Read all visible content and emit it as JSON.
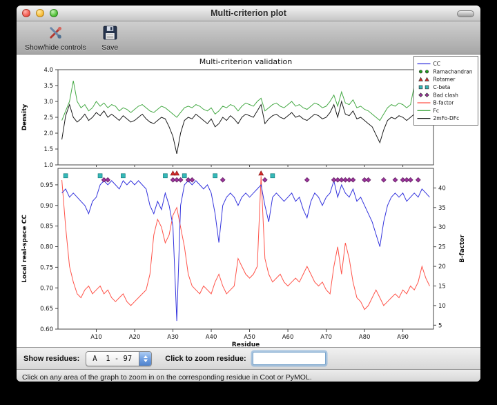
{
  "window": {
    "title": "Multi-criterion plot",
    "toolbar": {
      "items": [
        {
          "label": "Show/hide controls",
          "icon": "tools-icon"
        },
        {
          "label": "Save",
          "icon": "save-icon"
        }
      ]
    },
    "controls": {
      "show_residues_label": "Show residues:",
      "chain_range_value": "A  1 - 97",
      "zoom_label": "Click to zoom residue:",
      "zoom_value": ""
    },
    "status_text": "Click on any area of the graph to zoom in on the corresponding residue in Coot or PyMOL."
  },
  "chart_data": {
    "type": "line",
    "title": "Multi-criterion validation",
    "x": {
      "label": "Residue",
      "range": [
        0,
        98
      ],
      "tick_positions": [
        10,
        20,
        30,
        40,
        50,
        60,
        70,
        80,
        90
      ],
      "tick_labels": [
        "A10",
        "A20",
        "A30",
        "A40",
        "A50",
        "A60",
        "A70",
        "A80",
        "A90"
      ]
    },
    "top_plot": {
      "ylabel": "Density",
      "ylim": [
        1.0,
        4.0
      ],
      "yticks": [
        1.0,
        1.5,
        2.0,
        2.5,
        3.0,
        3.5,
        4.0
      ],
      "series": [
        {
          "name": "Fc",
          "color": "#44a944",
          "values": [
            2.4,
            2.7,
            3.0,
            3.65,
            3.0,
            2.8,
            2.9,
            2.7,
            2.8,
            3.0,
            2.85,
            2.95,
            2.8,
            2.9,
            2.85,
            2.7,
            2.8,
            2.75,
            2.65,
            2.75,
            2.85,
            2.9,
            2.8,
            2.7,
            2.65,
            2.75,
            2.85,
            2.8,
            2.7,
            2.6,
            2.5,
            2.65,
            2.8,
            2.85,
            2.8,
            2.9,
            2.85,
            2.75,
            2.7,
            2.8,
            2.6,
            2.7,
            2.85,
            2.8,
            2.9,
            2.85,
            2.7,
            2.85,
            2.95,
            2.9,
            2.85,
            3.0,
            3.1,
            2.7,
            2.8,
            2.9,
            2.95,
            2.85,
            2.8,
            2.9,
            3.0,
            2.85,
            2.9,
            2.8,
            2.75,
            2.85,
            2.95,
            2.9,
            2.8,
            2.85,
            3.0,
            3.2,
            2.85,
            3.3,
            2.95,
            2.9,
            3.05,
            2.8,
            2.85,
            2.75,
            2.7,
            2.6,
            2.5,
            2.4,
            2.6,
            2.8,
            2.9,
            2.85,
            2.95,
            2.9,
            2.8,
            2.9,
            3.5,
            2.9,
            3.45,
            3.0,
            2.9
          ]
        },
        {
          "name": "2mFo-DFc",
          "color": "#1a1a1a",
          "values": [
            1.8,
            2.55,
            2.9,
            2.5,
            2.35,
            2.45,
            2.6,
            2.4,
            2.5,
            2.65,
            2.55,
            2.7,
            2.5,
            2.6,
            2.5,
            2.4,
            2.55,
            2.45,
            2.35,
            2.4,
            2.5,
            2.6,
            2.45,
            2.35,
            2.3,
            2.4,
            2.5,
            2.45,
            2.2,
            1.9,
            1.35,
            2.0,
            2.4,
            2.5,
            2.45,
            2.6,
            2.5,
            2.4,
            2.3,
            2.45,
            2.2,
            2.3,
            2.5,
            2.4,
            2.55,
            2.45,
            2.3,
            2.5,
            2.6,
            2.55,
            2.5,
            2.7,
            2.9,
            2.3,
            2.45,
            2.55,
            2.6,
            2.5,
            2.45,
            2.55,
            2.65,
            2.5,
            2.55,
            2.45,
            2.4,
            2.5,
            2.6,
            2.55,
            2.45,
            2.5,
            2.65,
            2.9,
            2.5,
            3.0,
            2.6,
            2.55,
            2.7,
            2.45,
            2.5,
            2.4,
            2.3,
            2.2,
            1.95,
            1.7,
            2.1,
            2.4,
            2.5,
            2.45,
            2.55,
            2.5,
            2.4,
            2.5,
            2.6,
            2.5,
            3.3,
            2.6,
            2.5
          ]
        }
      ]
    },
    "bottom_plot": {
      "left": {
        "label": "Local real-space CC",
        "lim": [
          0.6,
          0.99
        ],
        "ticks": [
          0.6,
          0.65,
          0.7,
          0.75,
          0.8,
          0.85,
          0.9,
          0.95
        ]
      },
      "right": {
        "label": "B-factor",
        "lim": [
          4,
          45
        ],
        "ticks": [
          5,
          10,
          15,
          20,
          25,
          30,
          35,
          40
        ]
      },
      "series": [
        {
          "name": "B-factor",
          "axis": "right",
          "color": "#ff5349",
          "values": [
            42,
            30,
            20,
            16,
            13,
            12,
            14,
            15,
            13,
            14,
            15,
            13,
            14,
            12,
            11,
            12,
            13,
            11,
            10,
            11,
            12,
            13,
            14,
            18,
            28,
            32,
            30,
            26,
            28,
            33,
            35,
            30,
            25,
            18,
            15,
            14,
            13,
            15,
            14,
            13,
            16,
            18,
            15,
            13,
            14,
            15,
            22,
            20,
            18,
            17,
            18,
            20,
            43,
            22,
            18,
            16,
            17,
            18,
            16,
            15,
            16,
            17,
            16,
            18,
            20,
            18,
            16,
            15,
            16,
            14,
            13,
            20,
            25,
            18,
            26,
            22,
            16,
            12,
            11,
            9,
            10,
            12,
            14,
            12,
            10,
            11,
            12,
            13,
            12,
            14,
            13,
            15,
            14,
            16,
            20,
            17,
            15
          ]
        },
        {
          "name": "CC",
          "axis": "left",
          "color": "#3333dd",
          "values": [
            0.93,
            0.94,
            0.92,
            0.93,
            0.92,
            0.91,
            0.9,
            0.88,
            0.91,
            0.92,
            0.95,
            0.96,
            0.95,
            0.96,
            0.95,
            0.94,
            0.96,
            0.95,
            0.96,
            0.95,
            0.96,
            0.95,
            0.94,
            0.9,
            0.88,
            0.91,
            0.89,
            0.93,
            0.9,
            0.85,
            0.62,
            0.9,
            0.95,
            0.96,
            0.95,
            0.96,
            0.95,
            0.94,
            0.95,
            0.93,
            0.88,
            0.81,
            0.9,
            0.92,
            0.93,
            0.92,
            0.9,
            0.92,
            0.93,
            0.92,
            0.93,
            0.94,
            0.95,
            0.9,
            0.86,
            0.92,
            0.93,
            0.92,
            0.91,
            0.92,
            0.93,
            0.91,
            0.92,
            0.89,
            0.87,
            0.91,
            0.93,
            0.92,
            0.9,
            0.92,
            0.93,
            0.96,
            0.92,
            0.95,
            0.93,
            0.92,
            0.94,
            0.91,
            0.92,
            0.9,
            0.88,
            0.86,
            0.83,
            0.8,
            0.86,
            0.9,
            0.92,
            0.93,
            0.92,
            0.93,
            0.91,
            0.92,
            0.93,
            0.92,
            0.94,
            0.93,
            0.92
          ]
        }
      ],
      "outlier_markers": [
        {
          "name": "Ramachandran",
          "shape": "circle",
          "color": "#1f9e1f",
          "edge": "#0d6b0d",
          "y": 0.985,
          "residues": []
        },
        {
          "name": "Rotamer",
          "shape": "triangle",
          "color": "#d42a2a",
          "edge": "#8c1414",
          "y": 0.978,
          "residues": [
            30,
            31,
            53
          ]
        },
        {
          "name": "C-beta",
          "shape": "square",
          "color": "#35b8b8",
          "edge": "#17807f",
          "y": 0.972,
          "residues": [
            2,
            11,
            17,
            28,
            33,
            41,
            56
          ]
        },
        {
          "name": "Bad clash",
          "shape": "diamond",
          "color": "#993399",
          "edge": "#5e1e5e",
          "y": 0.962,
          "residues": [
            12,
            13,
            30,
            31,
            32,
            34,
            35,
            43,
            54,
            65,
            72,
            73,
            74,
            75,
            76,
            77,
            80,
            81,
            85,
            88,
            90,
            91,
            92,
            94
          ]
        }
      ]
    },
    "legend": {
      "position": "top-right",
      "entries": [
        {
          "label": "CC",
          "type": "line",
          "color": "#3333dd"
        },
        {
          "label": "Ramachandran",
          "type": "circle",
          "color": "#1f9e1f"
        },
        {
          "label": "Rotamer",
          "type": "triangle",
          "color": "#d42a2a"
        },
        {
          "label": "C-beta",
          "type": "square",
          "color": "#35b8b8"
        },
        {
          "label": "Bad clash",
          "type": "diamond",
          "color": "#993399"
        },
        {
          "label": "B-factor",
          "type": "line",
          "color": "#ff5349"
        },
        {
          "label": "Fc",
          "type": "line",
          "color": "#44a944"
        },
        {
          "label": "2mFo-DFc",
          "type": "line",
          "color": "#1a1a1a"
        }
      ]
    }
  }
}
